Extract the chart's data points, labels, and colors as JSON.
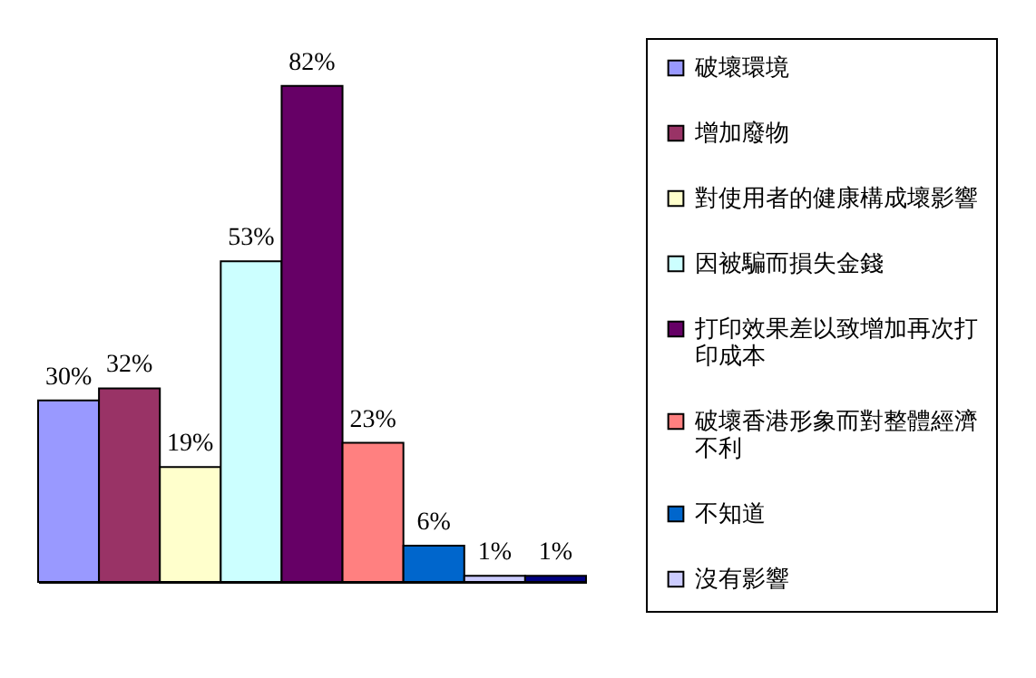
{
  "chart_data": {
    "type": "bar",
    "categories": [
      null
    ],
    "series": [
      {
        "name": "破壞環境",
        "color": "#9999ff",
        "values": [
          30
        ],
        "value_labels": [
          "30%"
        ]
      },
      {
        "name": "增加廢物",
        "color": "#993366",
        "values": [
          32
        ],
        "value_labels": [
          "32%"
        ]
      },
      {
        "name": "對使用者的健康構成壞影響",
        "color": "#ffffcc",
        "values": [
          19
        ],
        "value_labels": [
          "19%"
        ]
      },
      {
        "name": "因被騙而損失金錢",
        "color": "#ccffff",
        "values": [
          53
        ],
        "value_labels": [
          "53%"
        ]
      },
      {
        "name": "打印效果差以致增加再次打印成本",
        "color": "#660066",
        "values": [
          82
        ],
        "value_labels": [
          "82%"
        ]
      },
      {
        "name": "破壞香港形象而對整體經濟不利",
        "color": "#ff8080",
        "values": [
          23
        ],
        "value_labels": [
          "23%"
        ]
      },
      {
        "name": "不知道",
        "color": "#0066cc",
        "values": [
          6
        ],
        "value_labels": [
          "6%"
        ]
      },
      {
        "name": "沒有影響",
        "color": "#ccccff",
        "values": [
          1
        ],
        "value_labels": [
          "1%"
        ]
      },
      {
        "color": "#000080",
        "values": [
          1
        ],
        "value_labels": [
          "1%"
        ]
      }
    ],
    "legend": "right",
    "grid": false,
    "tick_labels": false
  }
}
